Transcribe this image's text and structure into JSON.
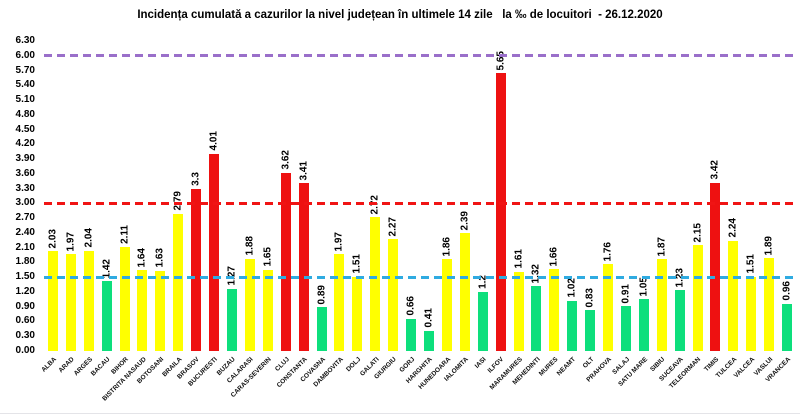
{
  "title": "Incidența cumulată a cazurilor la nivel județean în ultimele 14 zile   la ‰ de locuitori  - 26.12.2020",
  "chart_data": {
    "type": "bar",
    "title": "Incidența cumulată a cazurilor la nivel județean în ultimele 14 zile la ‰ de locuitori - 26.12.2020",
    "date": "26.12.2020",
    "unit": "‰ de locuitori",
    "ylim": [
      0,
      6.3
    ],
    "ytick_step": 0.3,
    "ytick_labels": [
      "0.00",
      "0.30",
      "0.60",
      "0.90",
      "1.20",
      "1.50",
      "1.80",
      "2.10",
      "2.40",
      "2.70",
      "3.00",
      "3.30",
      "3.60",
      "3.90",
      "4.20",
      "4.50",
      "4.80",
      "5.10",
      "5.40",
      "5.70",
      "6.00",
      "6.30"
    ],
    "grid": "off",
    "legend": "none",
    "categories": [
      "ALBA",
      "ARAD",
      "ARGES",
      "BACAU",
      "BIHOR",
      "BISTRITA NASAUD",
      "BOTOSANI",
      "BRAILA",
      "BRASOV",
      "BUCURESTI",
      "BUZAU",
      "CALARASI",
      "CARAS-SEVERIN",
      "CLUJ",
      "CONSTANTA",
      "COVASNA",
      "DAMBOVITA",
      "DOLJ",
      "GALATI",
      "GIURGIU",
      "GORJ",
      "HARGHITA",
      "HUNEDOARA",
      "IALOMITA",
      "IASI",
      "ILFOV",
      "MARAMURES",
      "MEHEDINTI",
      "MURES",
      "NEAMT",
      "OLT",
      "PRAHOVA",
      "SALAJ",
      "SATU MARE",
      "SIBIU",
      "SUCEAVA",
      "TELEORMAN",
      "TIMIS",
      "TULCEA",
      "VALCEA",
      "VASLUI",
      "VRANCEA"
    ],
    "values": [
      2.03,
      1.97,
      2.04,
      1.42,
      2.11,
      1.64,
      1.63,
      2.79,
      3.3,
      4.01,
      1.27,
      1.88,
      1.65,
      3.62,
      3.41,
      0.89,
      1.97,
      1.51,
      2.72,
      2.27,
      0.66,
      0.41,
      1.86,
      2.39,
      1.2,
      5.65,
      1.61,
      1.32,
      1.66,
      1.02,
      0.83,
      1.76,
      0.91,
      1.05,
      1.87,
      1.23,
      2.15,
      3.42,
      2.24,
      1.51,
      1.89,
      0.96
    ],
    "value_labels": [
      "2.03",
      "1.97",
      "2.04",
      "1.42",
      "2.11",
      "1.64",
      "1.63",
      "2.79",
      "3.3",
      "4.01",
      "1.27",
      "1.88",
      "1.65",
      "3.62",
      "3.41",
      "0.89",
      "1.97",
      "1.51",
      "2.72",
      "2.27",
      "0.66",
      "0.41",
      "1.86",
      "2.39",
      "1.2",
      "5.65",
      "1.61",
      "1.32",
      "1.66",
      "1.02",
      "0.83",
      "1.76",
      "0.91",
      "1.05",
      "1.87",
      "1.23",
      "2.15",
      "3.42",
      "2.24",
      "1.51",
      "1.89",
      "0.96"
    ],
    "bar_color_keys": [
      "yellow",
      "yellow",
      "yellow",
      "green",
      "yellow",
      "yellow",
      "yellow",
      "yellow",
      "red",
      "red",
      "green",
      "yellow",
      "yellow",
      "red",
      "red",
      "green",
      "yellow",
      "yellow",
      "yellow",
      "yellow",
      "green",
      "green",
      "yellow",
      "yellow",
      "green",
      "red",
      "yellow",
      "green",
      "yellow",
      "green",
      "green",
      "yellow",
      "green",
      "green",
      "yellow",
      "green",
      "yellow",
      "red",
      "yellow",
      "yellow",
      "yellow",
      "green"
    ],
    "palette": {
      "yellow": "#ffff00",
      "green": "#0ddf7c",
      "red": "#ee1111"
    },
    "reference_lines": [
      {
        "value": 6.0,
        "color": "#9a6fca",
        "style": "dashed"
      },
      {
        "value": 3.0,
        "color": "#f01414",
        "style": "dashed"
      },
      {
        "value": 1.5,
        "color": "#2fabe1",
        "style": "dashed"
      }
    ]
  }
}
